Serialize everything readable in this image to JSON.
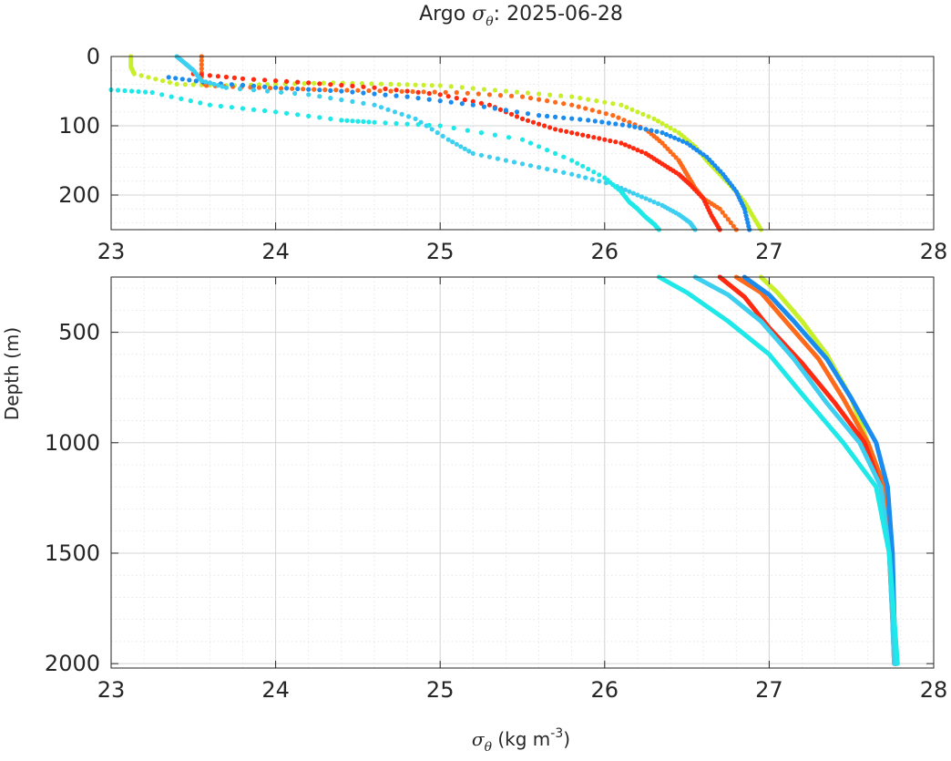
{
  "figure": {
    "title_prefix": "Argo ",
    "title_symbol": "σ",
    "title_symbol_sub": "θ",
    "title_suffix": ": 2025-06-28",
    "ylabel": "Depth (m)",
    "xlabel_symbol": "σ",
    "xlabel_symbol_sub": "θ",
    "xlabel_units": " (kg m",
    "xlabel_units_exp": "-3",
    "xlabel_units_end": ")"
  },
  "chart_data": [
    {
      "type": "scatter",
      "panel": "upper",
      "xlim": [
        23,
        28
      ],
      "ylim": [
        0,
        250
      ],
      "y_reversed": true,
      "xticks": [
        23,
        24,
        25,
        26,
        27,
        28
      ],
      "yticks": [
        0,
        100,
        200
      ],
      "grid": true,
      "minor_grid": true,
      "series": [
        {
          "color": "#c8f02a",
          "x": [
            23.12,
            23.12,
            23.14,
            23.4,
            23.7,
            24.0,
            24.35,
            24.7,
            25.0,
            25.4,
            25.8,
            26.1,
            26.3,
            26.45,
            26.55,
            26.62,
            26.7,
            26.78,
            26.85,
            26.9,
            26.95
          ],
          "y": [
            0,
            15,
            25,
            40,
            42,
            40,
            38,
            40,
            42,
            50,
            58,
            70,
            90,
            110,
            130,
            150,
            170,
            190,
            210,
            230,
            250
          ]
        },
        {
          "color": "#ff6a1a",
          "x": [
            23.55,
            23.55,
            23.58,
            23.9,
            24.3,
            24.7,
            25.1,
            25.5,
            25.8,
            26.05,
            26.25,
            26.35,
            26.45,
            26.5,
            26.55,
            26.6,
            26.7,
            26.8
          ],
          "y": [
            0,
            35,
            42,
            45,
            48,
            50,
            52,
            58,
            70,
            85,
            105,
            125,
            150,
            170,
            190,
            205,
            220,
            250
          ]
        },
        {
          "color": "#ff2a10",
          "x": [
            23.5,
            23.8,
            24.2,
            24.6,
            25.0,
            25.3,
            25.5,
            25.7,
            25.9,
            26.1,
            26.25,
            26.35,
            26.45,
            26.52,
            26.6,
            26.65,
            26.7
          ],
          "y": [
            25,
            32,
            38,
            45,
            55,
            70,
            90,
            105,
            115,
            125,
            140,
            155,
            170,
            185,
            205,
            230,
            250
          ]
        },
        {
          "color": "#1a8cf0",
          "x": [
            23.35,
            23.6,
            24.0,
            24.4,
            24.8,
            25.2,
            25.6,
            25.9,
            26.15,
            26.35,
            26.5,
            26.62,
            26.72,
            26.8,
            26.85,
            26.88
          ],
          "y": [
            30,
            38,
            45,
            50,
            58,
            70,
            85,
            92,
            100,
            110,
            125,
            145,
            170,
            195,
            220,
            250
          ]
        },
        {
          "color": "#3ccff0",
          "x": [
            23.4,
            23.45,
            23.5,
            23.55,
            23.7,
            24.2,
            24.6,
            24.85,
            25.05,
            25.2,
            25.5,
            25.8,
            26.05,
            26.2,
            26.35,
            26.45,
            26.52,
            26.55
          ],
          "y": [
            0,
            10,
            20,
            35,
            45,
            55,
            70,
            90,
            120,
            140,
            155,
            170,
            185,
            200,
            215,
            228,
            240,
            250
          ]
        },
        {
          "color": "#1ee8e8",
          "x": [
            23.0,
            23.25,
            23.6,
            24.0,
            24.4,
            24.6,
            25.0,
            25.5,
            25.8,
            26.0,
            26.1,
            26.15,
            26.2,
            26.25,
            26.3,
            26.33
          ],
          "y": [
            48,
            52,
            70,
            80,
            92,
            95,
            100,
            120,
            150,
            175,
            195,
            210,
            220,
            232,
            242,
            250
          ]
        }
      ]
    },
    {
      "type": "line",
      "panel": "lower",
      "xlim": [
        23,
        28
      ],
      "ylim": [
        250,
        2020
      ],
      "y_reversed": true,
      "xticks": [
        23,
        24,
        25,
        26,
        27,
        28
      ],
      "yticks": [
        500,
        1000,
        1500,
        2000
      ],
      "grid": true,
      "minor_grid": true,
      "series": [
        {
          "color": "#c8f02a",
          "x": [
            26.95,
            27.05,
            27.2,
            27.35,
            27.5,
            27.6,
            27.7,
            27.74,
            27.76,
            27.77
          ],
          "y": [
            250,
            320,
            450,
            600,
            800,
            1000,
            1200,
            1500,
            1800,
            2000
          ]
        },
        {
          "color": "#ff6a1a",
          "x": [
            26.8,
            26.95,
            27.1,
            27.3,
            27.45,
            27.6,
            27.7,
            27.74,
            27.76,
            27.77
          ],
          "y": [
            250,
            320,
            450,
            620,
            800,
            1000,
            1200,
            1500,
            1800,
            2000
          ]
        },
        {
          "color": "#ff2a10",
          "x": [
            26.7,
            26.85,
            27.0,
            27.2,
            27.4,
            27.58,
            27.68,
            27.73,
            27.75,
            27.76
          ],
          "y": [
            250,
            340,
            480,
            640,
            820,
            1000,
            1200,
            1500,
            1800,
            2000
          ]
        },
        {
          "color": "#1a8cf0",
          "x": [
            26.85,
            27.0,
            27.15,
            27.35,
            27.5,
            27.65,
            27.72,
            27.75,
            27.76,
            27.77
          ],
          "y": [
            250,
            330,
            450,
            620,
            800,
            1000,
            1200,
            1500,
            1800,
            2000
          ]
        },
        {
          "color": "#3ccff0",
          "x": [
            26.55,
            26.75,
            26.95,
            27.15,
            27.35,
            27.55,
            27.68,
            27.73,
            27.75,
            27.76
          ],
          "y": [
            250,
            330,
            450,
            620,
            820,
            1000,
            1200,
            1500,
            1800,
            2000
          ]
        },
        {
          "color": "#1ee8e8",
          "x": [
            26.33,
            26.5,
            26.75,
            27.0,
            27.2,
            27.45,
            27.65,
            27.73,
            27.76,
            27.78
          ],
          "y": [
            250,
            320,
            450,
            600,
            780,
            1000,
            1200,
            1500,
            1800,
            2000
          ]
        }
      ]
    }
  ]
}
